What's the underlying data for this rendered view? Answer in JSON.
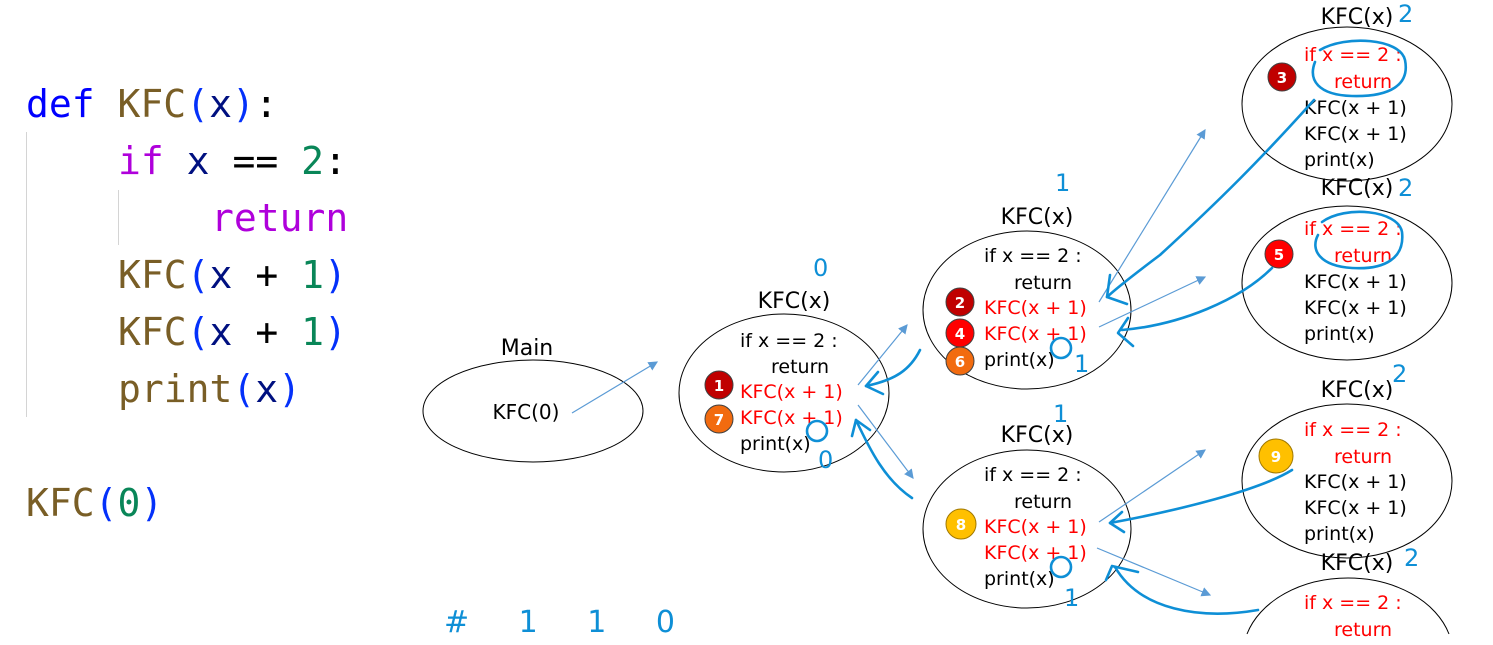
{
  "code": {
    "def_kw": "def",
    "fn_name": "KFC",
    "param": "x",
    "if_kw": "if",
    "if_var": "x",
    "eq_op": "==",
    "if_num": "2",
    "return_kw": "return",
    "call_fn": "KFC",
    "call_var": "x",
    "plus_op": "+",
    "call_num": "1",
    "print_fn": "print",
    "print_var": "x",
    "main_num": "0"
  },
  "diagram": {
    "main_title": "Main",
    "main_call": "KFC(0)",
    "node_title": "KFC(x)",
    "if_line": "if x == 2 :",
    "return_line": "return",
    "call_line": "KFC(x + 1)",
    "print_line": "print(x)",
    "steps": [
      "1",
      "2",
      "3",
      "4",
      "5",
      "6",
      "7",
      "8",
      "9"
    ],
    "colors": {
      "dark_red": "#c00000",
      "red": "#ff0000",
      "orange": "#f26b0f",
      "yellow": "#ffc000",
      "ink": "#0e8fd6",
      "arrow": "#5b9bd5",
      "code_red": "#ff0000"
    }
  },
  "annotations": {
    "depth_0": "0",
    "depth_1a": "1",
    "depth_1b": "1",
    "depth_2a": "2",
    "depth_2b": "2",
    "depth_2c": "2",
    "depth_2d": "2",
    "x_val_0": "0",
    "x_val_1a": "1",
    "x_val_1b": "1",
    "result": "# 1 1 0"
  }
}
